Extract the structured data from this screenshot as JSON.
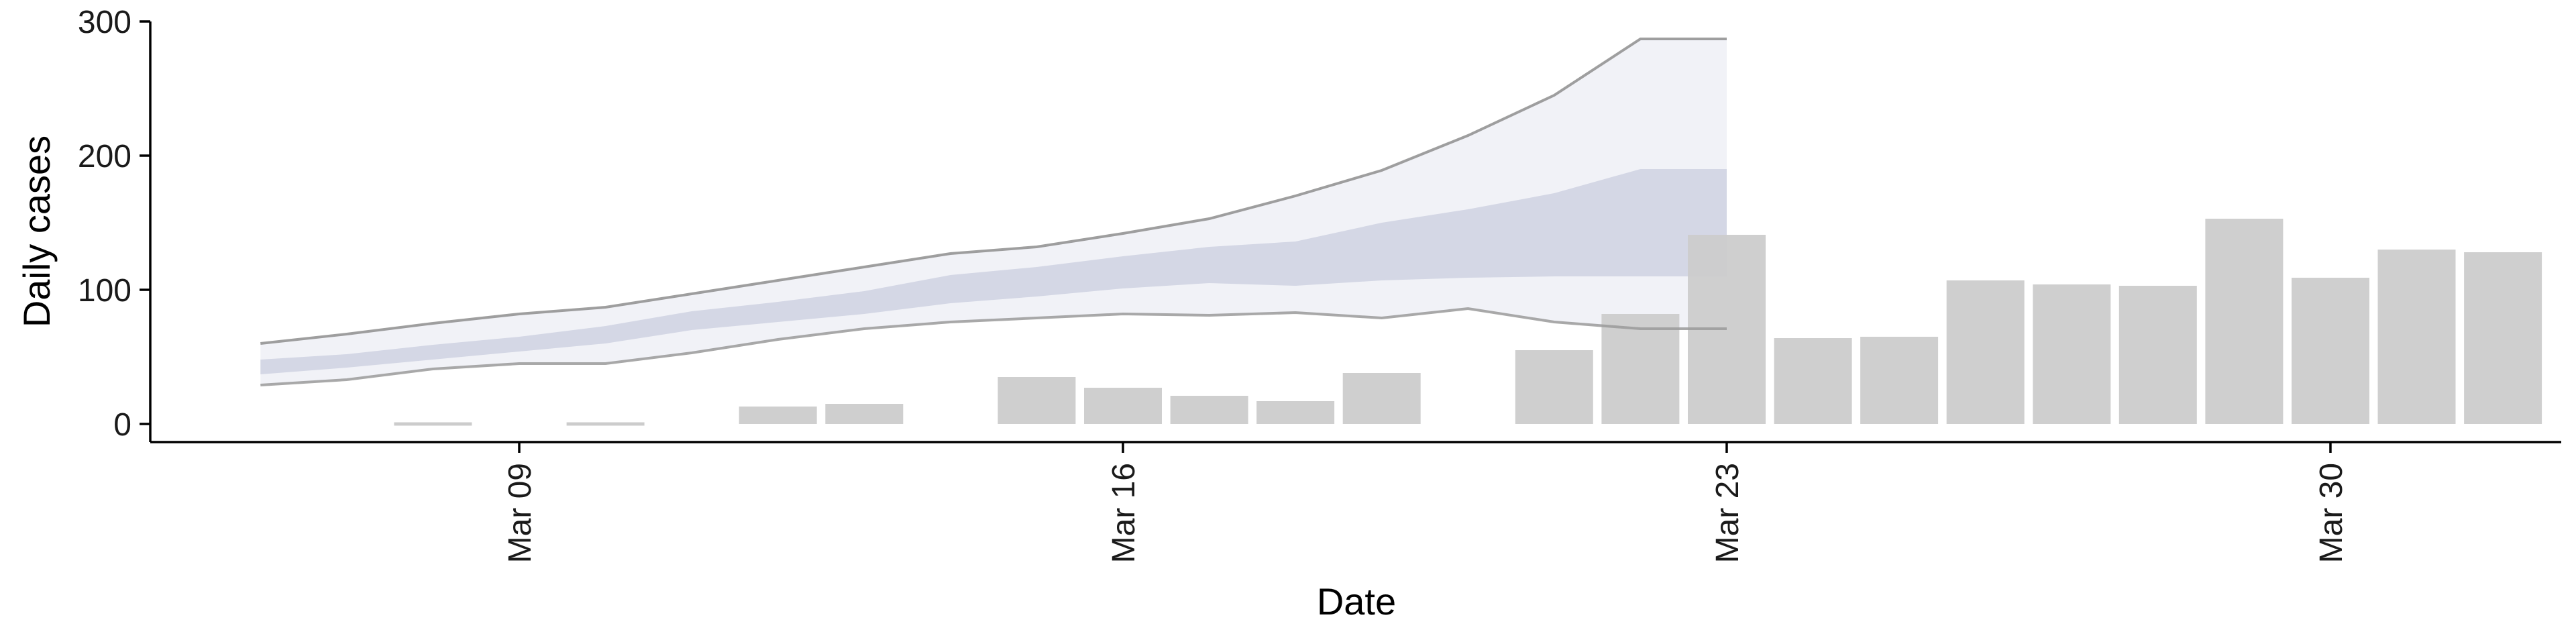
{
  "chart_data": {
    "type": "bar",
    "title": "",
    "xlabel": "Date",
    "ylabel": "Daily cases",
    "ylim": [
      0,
      300
    ],
    "yticks": [
      0,
      100,
      200,
      300
    ],
    "xticks": [
      "Mar 09",
      "Mar 16",
      "Mar 23",
      "Mar 30"
    ],
    "xtick_dates": [
      "2020-03-09",
      "2020-03-16",
      "2020-03-23",
      "2020-03-30"
    ],
    "xlim": [
      "2020-03-04",
      "2020-04-02"
    ],
    "grid": false,
    "legend": "none",
    "colors": {
      "bars": "#cccccc",
      "band_inner": "#c9cddf",
      "band_outer": "#eef0f6",
      "line_lower": "#9a9a9a",
      "line_upper": "#8e8e8e"
    },
    "bars": [
      {
        "date": "2020-03-08",
        "value": 0
      },
      {
        "date": "2020-03-10",
        "value": 0
      },
      {
        "date": "2020-03-12",
        "value": 13
      },
      {
        "date": "2020-03-13",
        "value": 15
      },
      {
        "date": "2020-03-15",
        "value": 35
      },
      {
        "date": "2020-03-16",
        "value": 27
      },
      {
        "date": "2020-03-17",
        "value": 21
      },
      {
        "date": "2020-03-18",
        "value": 17
      },
      {
        "date": "2020-03-19",
        "value": 38
      },
      {
        "date": "2020-03-21",
        "value": 55
      },
      {
        "date": "2020-03-22",
        "value": 82
      },
      {
        "date": "2020-03-23",
        "value": 141
      },
      {
        "date": "2020-03-24",
        "value": 64
      },
      {
        "date": "2020-03-25",
        "value": 65
      },
      {
        "date": "2020-03-26",
        "value": 107
      },
      {
        "date": "2020-03-27",
        "value": 104
      },
      {
        "date": "2020-03-28",
        "value": 103
      },
      {
        "date": "2020-03-29",
        "value": 153
      },
      {
        "date": "2020-03-30",
        "value": 109
      },
      {
        "date": "2020-03-31",
        "value": 130
      },
      {
        "date": "2020-04-01",
        "value": 128
      }
    ],
    "estimate": {
      "dates": [
        "2020-03-06",
        "2020-03-07",
        "2020-03-08",
        "2020-03-09",
        "2020-03-10",
        "2020-03-11",
        "2020-03-12",
        "2020-03-13",
        "2020-03-14",
        "2020-03-15",
        "2020-03-16",
        "2020-03-17",
        "2020-03-18",
        "2020-03-19",
        "2020-03-20",
        "2020-03-21",
        "2020-03-22",
        "2020-03-23"
      ],
      "outer_lower": [
        29,
        33,
        41,
        45,
        45,
        53,
        63,
        71,
        76,
        79,
        82,
        81,
        83,
        79,
        86,
        76,
        71,
        71
      ],
      "outer_upper": [
        60,
        67,
        75,
        82,
        87,
        97,
        107,
        117,
        127,
        132,
        142,
        153,
        170,
        189,
        215,
        245,
        287,
        287
      ],
      "inner_lower": [
        37,
        42,
        48,
        54,
        60,
        70,
        76,
        82,
        90,
        95,
        101,
        105,
        103,
        107,
        109,
        110,
        110,
        110
      ],
      "inner_upper": [
        48,
        52,
        59,
        65,
        73,
        84,
        91,
        99,
        111,
        117,
        125,
        132,
        136,
        150,
        160,
        172,
        190,
        190
      ]
    }
  }
}
